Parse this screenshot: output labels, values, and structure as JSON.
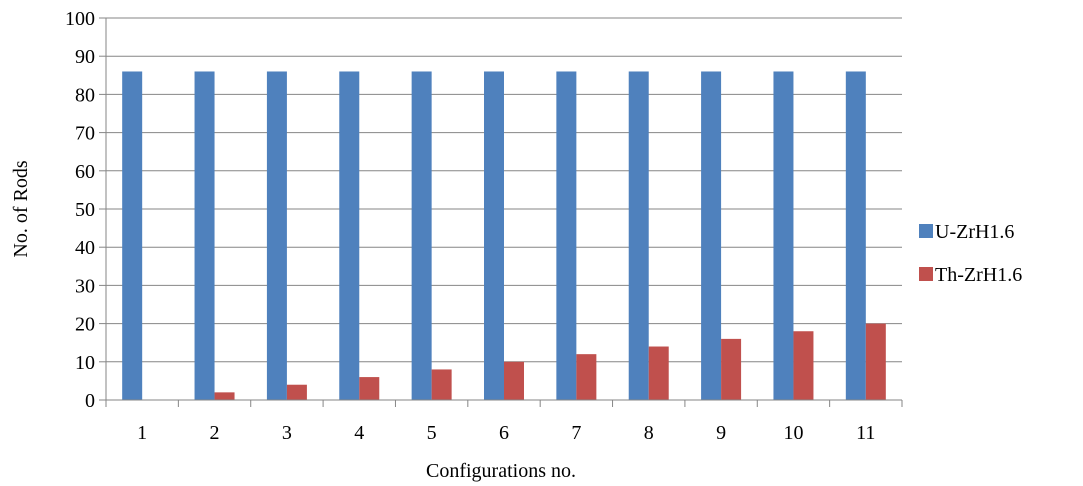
{
  "chart_data": {
    "type": "bar",
    "title": "",
    "xlabel": "Configurations no.",
    "ylabel": "No. of Rods",
    "categories": [
      "1",
      "2",
      "3",
      "4",
      "5",
      "6",
      "7",
      "8",
      "9",
      "10",
      "11"
    ],
    "series": [
      {
        "name": "U-ZrH1.6",
        "color": "#4f81bd",
        "values": [
          86,
          86,
          86,
          86,
          86,
          86,
          86,
          86,
          86,
          86,
          86
        ]
      },
      {
        "name": "Th-ZrH1.6",
        "color": "#c0504d",
        "values": [
          0,
          2,
          4,
          6,
          8,
          10,
          12,
          14,
          16,
          18,
          20
        ]
      }
    ],
    "ylim": [
      0,
      100
    ],
    "yticks": [
      0,
      10,
      20,
      30,
      40,
      50,
      60,
      70,
      80,
      90,
      100
    ],
    "grid": true,
    "legend_position": "right"
  }
}
